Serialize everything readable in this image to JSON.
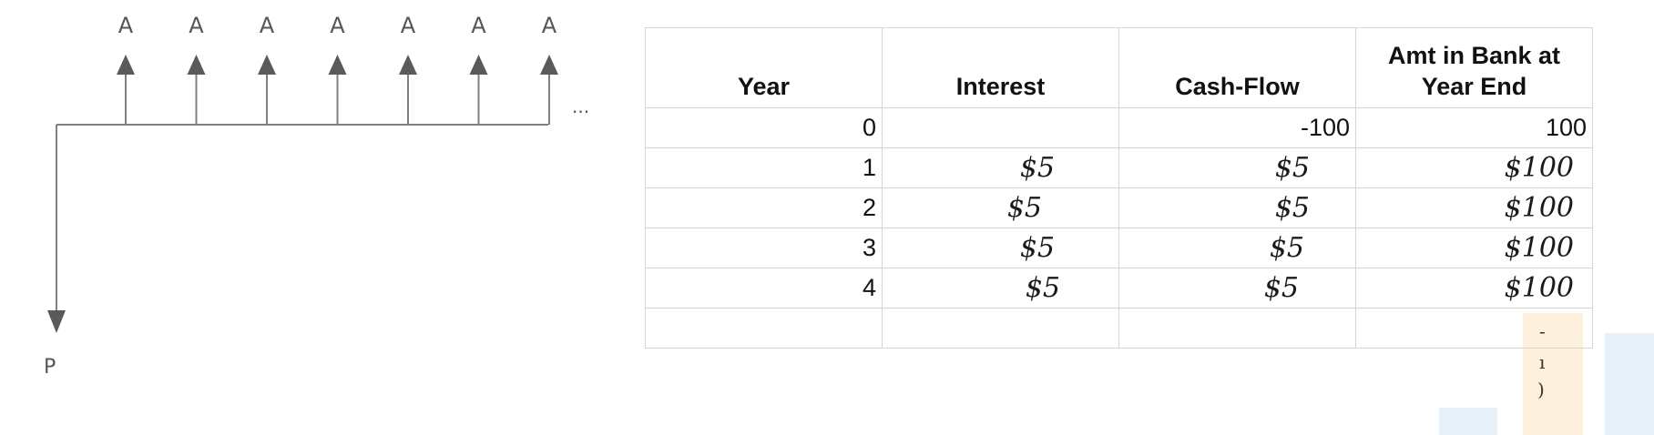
{
  "diagram": {
    "arrow_labels": [
      "A",
      "A",
      "A",
      "A",
      "A",
      "A",
      "A"
    ],
    "ellipsis": "...",
    "present_label": "P"
  },
  "table": {
    "headers": [
      "Year",
      "Interest",
      "Cash-Flow",
      "Amt in Bank at Year End"
    ],
    "rows": [
      {
        "year": "0",
        "interest": "",
        "cashflow": "-100",
        "amount": "100"
      },
      {
        "year": "1",
        "interest": "$5",
        "cashflow": "$5",
        "amount": "$100"
      },
      {
        "year": "2",
        "interest": "$5",
        "cashflow": "$5",
        "amount": "$100"
      },
      {
        "year": "3",
        "interest": "$5",
        "cashflow": "$5",
        "amount": "$100"
      },
      {
        "year": "4",
        "interest": "$5",
        "cashflow": "$5",
        "amount": "$100"
      },
      {
        "year": "",
        "interest": "",
        "cashflow": "",
        "amount": ""
      }
    ]
  },
  "colors": {
    "diagram_line": "#808080",
    "arrow_head": "#5a5a5a",
    "grid_border": "#d4d4d4",
    "highlight_orange": "#fdf1de",
    "highlight_blue": "#e7f1f9"
  }
}
